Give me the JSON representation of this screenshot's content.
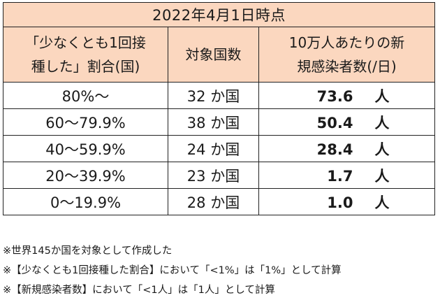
{
  "title": "2022年4月1日時点",
  "headers": {
    "col1": [
      "「少なくとも1回接",
      "種した」割合(国)"
    ],
    "col2": "対象国数",
    "col3": [
      "10万人あたりの新",
      "規感染者数(/日)"
    ]
  },
  "rows": [
    {
      "range": "80%〜",
      "count": "32 か国",
      "rate": "73.6",
      "unit": "人"
    },
    {
      "range": "60〜79.9%",
      "count": "38 か国",
      "rate": "50.4",
      "unit": "人"
    },
    {
      "range": "40〜59.9%",
      "count": "24 か国",
      "rate": "28.4",
      "unit": "人"
    },
    {
      "range": "20〜39.9%",
      "count": "23 か国",
      "rate": "1.7",
      "unit": "人"
    },
    {
      "range": "0〜19.9%",
      "count": "28 か国",
      "rate": "1.0",
      "unit": "人"
    }
  ],
  "notes": [
    "※世界145か国を対象として作成した",
    "※【少なくとも1回接種した割合】において「<1%」は「1%」として計算",
    "※【新規感染者数】において「<1人」は「1人」として計算"
  ]
}
